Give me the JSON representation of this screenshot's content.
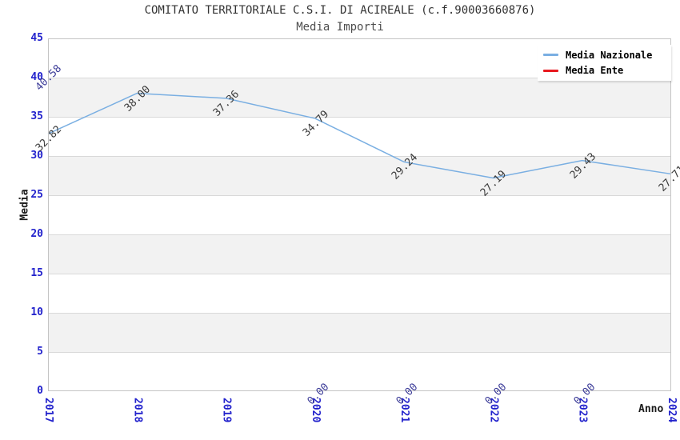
{
  "title": "COMITATO TERRITORIALE C.S.I. DI ACIREALE (c.f.90003660876)",
  "subtitle": "Media Importi",
  "chart_data": {
    "type": "line",
    "x": [
      2017,
      2018,
      2019,
      2020,
      2021,
      2022,
      2023,
      2024
    ],
    "x_axis_label": "Anno",
    "y_axis_label": "Media",
    "ylim": [
      0,
      45
    ],
    "ytick_step": 5,
    "yticks": [
      0,
      5,
      10,
      15,
      20,
      25,
      30,
      35,
      40,
      45
    ],
    "series": [
      {
        "name": "Media Nazionale",
        "color": "#7aafe2",
        "label_color": "#3a3a3a",
        "line_visible": true,
        "values": [
          32.82,
          38.0,
          37.36,
          34.79,
          29.24,
          27.19,
          29.43,
          27.71
        ]
      },
      {
        "name": "Media Ente",
        "color": "#e8191f",
        "label_color": "#3d3d99",
        "line_visible": false,
        "values": [
          40.58,
          null,
          null,
          0.0,
          0.0,
          0.0,
          0.0,
          null
        ]
      }
    ],
    "value_label_decimals": 2,
    "legend_position": "top-right",
    "grid": "horizontal-bands",
    "band_color": "#f2f2f2",
    "gridline_color": "#d9d9d9",
    "border_color": "#c4c4c4",
    "tick_label_color": "#2222cc"
  }
}
